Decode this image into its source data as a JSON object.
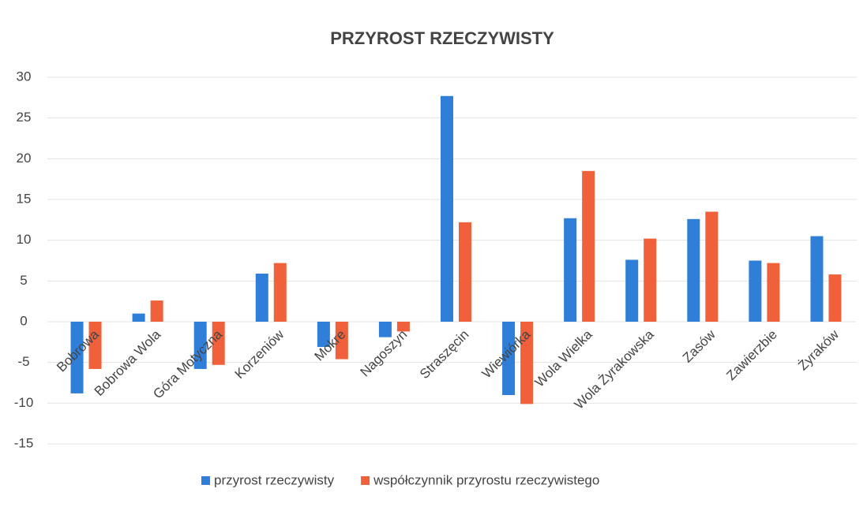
{
  "chart_data": {
    "type": "bar",
    "title": "PRZYROST RZECZYWISTY",
    "categories": [
      "Bobrowa",
      "Bobrowa Wola",
      "Góra Motyczna",
      "Korzeniów",
      "Mokre",
      "Nagoszyn",
      "Straszęcin",
      "Wiewiórka",
      "Wola Wielka",
      "Wola Żyrakowska",
      "Zasów",
      "Zawierzbie",
      "Żyraków"
    ],
    "series": [
      {
        "name": "przyrost rzeczywisty",
        "color": "#2f7fd8",
        "values": [
          -8.8,
          1.0,
          -5.8,
          5.9,
          -3.1,
          -1.9,
          27.7,
          -9.0,
          12.7,
          7.6,
          12.6,
          7.5,
          10.5
        ]
      },
      {
        "name": "współczynnik przyrostu rzeczywistego",
        "color": "#f0603a",
        "values": [
          -5.8,
          2.6,
          -5.3,
          7.2,
          -4.6,
          -1.2,
          12.2,
          -10.1,
          18.5,
          10.2,
          13.5,
          7.2,
          5.8
        ]
      }
    ],
    "ylim": [
      -15,
      30
    ],
    "yticks": [
      -15,
      -10,
      -5,
      0,
      5,
      10,
      15,
      20,
      25,
      30
    ],
    "grid": true,
    "legend": "bottom"
  }
}
